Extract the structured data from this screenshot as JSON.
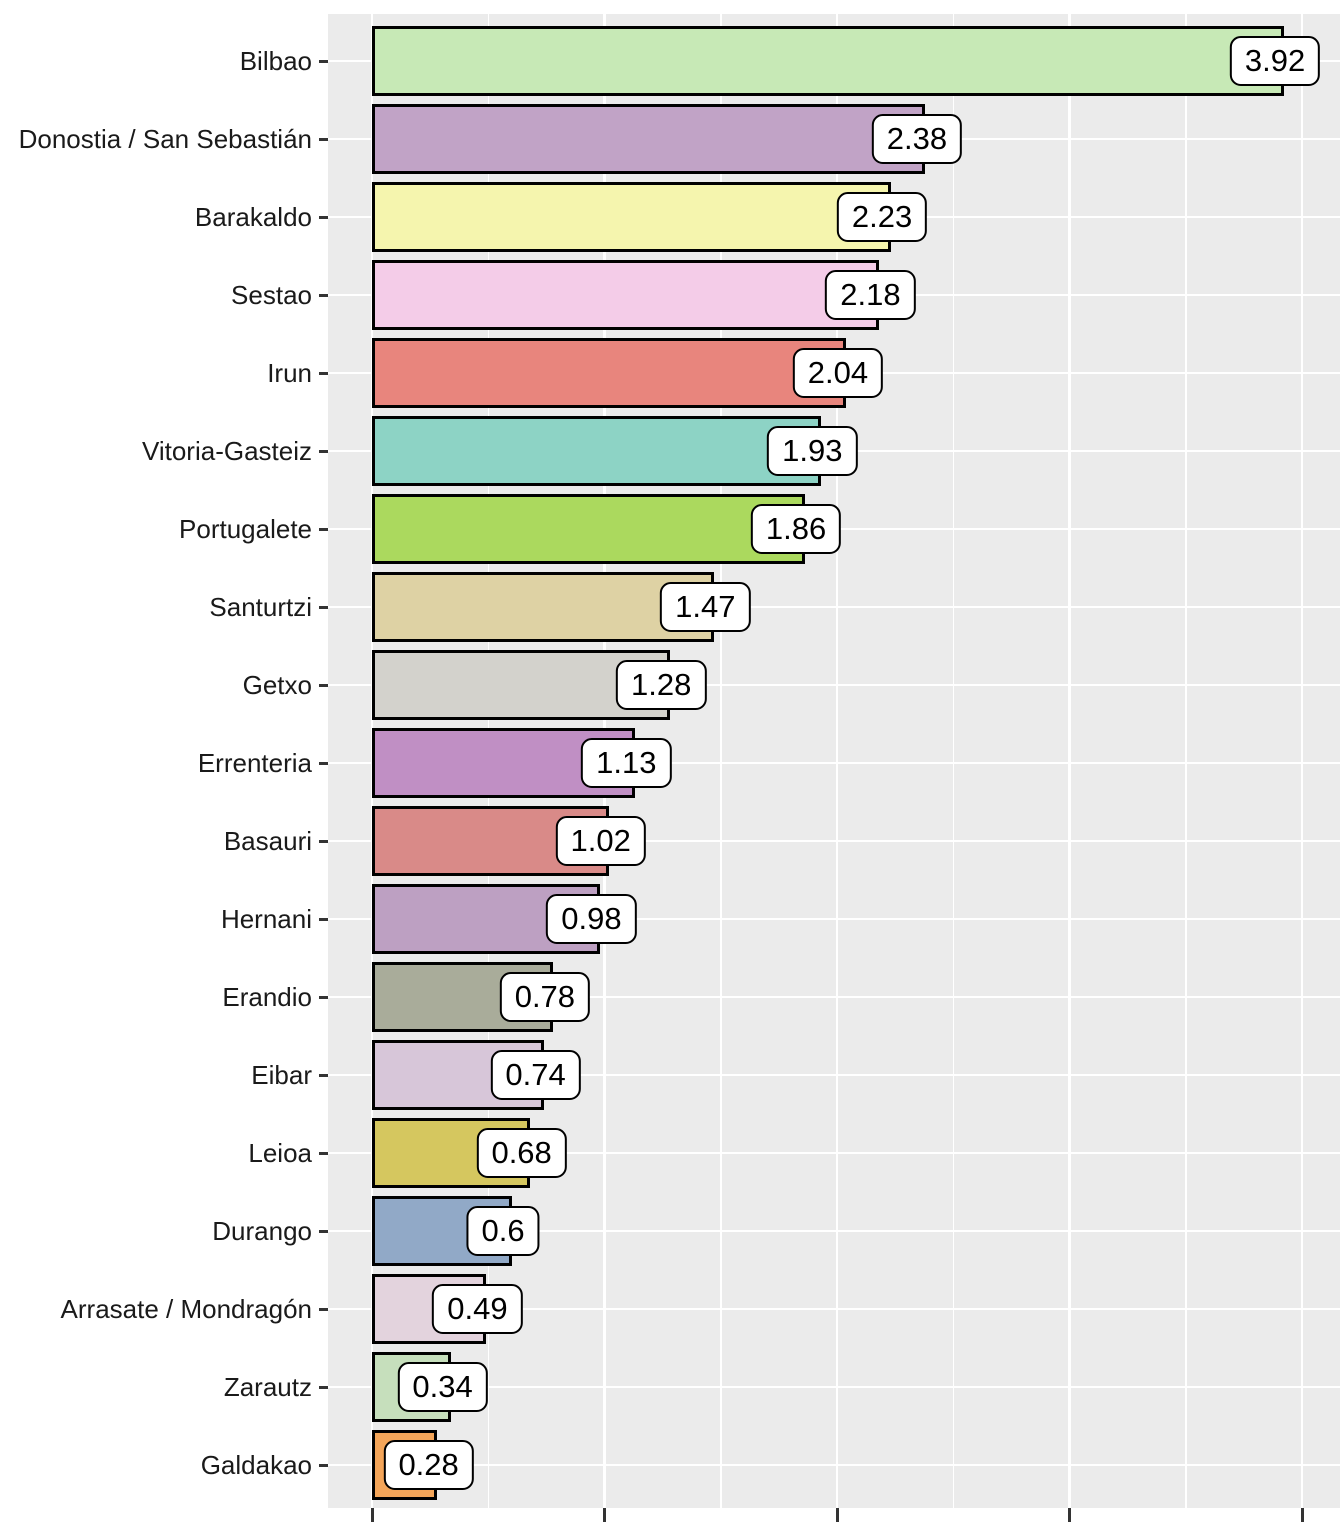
{
  "chart_data": {
    "type": "bar",
    "orientation": "horizontal",
    "title": "",
    "xlabel": "",
    "ylabel": "",
    "categories": [
      "Bilbao",
      "Donostia / San Sebastián",
      "Barakaldo",
      "Sestao",
      "Irun",
      "Vitoria-Gasteiz",
      "Portugalete",
      "Santurtzi",
      "Getxo",
      "Errenteria",
      "Basauri",
      "Hernani",
      "Erandio",
      "Eibar",
      "Leioa",
      "Durango",
      "Arrasate / Mondragón",
      "Zarautz",
      "Galdakao"
    ],
    "values": [
      3.92,
      2.38,
      2.23,
      2.18,
      2.04,
      1.93,
      1.86,
      1.47,
      1.28,
      1.13,
      1.02,
      0.98,
      0.78,
      0.74,
      0.68,
      0.6,
      0.49,
      0.34,
      0.28
    ],
    "value_labels": [
      "3.92",
      "2.38",
      "2.23",
      "2.18",
      "2.04",
      "1.93",
      "1.86",
      "1.47",
      "1.28",
      "1.13",
      "1.02",
      "0.98",
      "0.78",
      "0.74",
      "0.68",
      "0.6",
      "0.49",
      "0.34",
      "0.28"
    ],
    "bar_colors": [
      "#c7e9b6",
      "#c1a3c6",
      "#f5f5ae",
      "#f4cce8",
      "#e8857d",
      "#8dd3c5",
      "#abd95e",
      "#ded2a4",
      "#d3d2cc",
      "#c08fc4",
      "#d98a88",
      "#bda0c2",
      "#a9ac9a",
      "#d7c6d9",
      "#d5c75f",
      "#91a9c7",
      "#e3d3dd",
      "#c6dfbc",
      "#f4a559"
    ],
    "xlim": [
      0,
      4.35
    ],
    "x_major_ticks": [
      0,
      1,
      2,
      3,
      4
    ],
    "x_minor_step": 0.5,
    "x_tick_labels_visible": false,
    "grid": "on",
    "legend": "none",
    "panel_bg": "#ebebeb",
    "grid_color": "#ffffff",
    "bar_border_color": "#000000",
    "axis_text_color": "#1a1a1a",
    "tick_color": "#333333",
    "label_box": {
      "bg": "#ffffff",
      "border": "#000000",
      "text": "#000000"
    }
  }
}
